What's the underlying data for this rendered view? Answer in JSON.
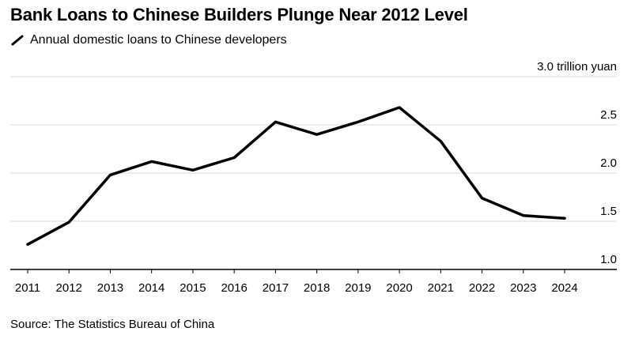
{
  "title": "Bank Loans to Chinese Builders Plunge Near 2012 Level",
  "legend_label": "Annual domestic loans to Chinese developers",
  "source": "Source: The Statistics Bureau of China",
  "colors": {
    "line": "#000000",
    "grid": "#d9d9d9",
    "axis": "#000000"
  },
  "chart_data": {
    "type": "line",
    "x": [
      2011,
      2012,
      2013,
      2014,
      2015,
      2016,
      2017,
      2018,
      2019,
      2020,
      2021,
      2022,
      2023,
      2024
    ],
    "series": [
      {
        "name": "Annual domestic loans to Chinese developers",
        "values": [
          1.26,
          1.49,
          1.98,
          2.12,
          2.03,
          2.16,
          2.53,
          2.4,
          2.53,
          2.68,
          2.33,
          1.74,
          1.56,
          1.53
        ]
      }
    ],
    "yticks": [
      "1.0",
      "1.5",
      "2.0",
      "2.5",
      "3.0 trillion yuan"
    ],
    "ylim": [
      1.0,
      3.0
    ],
    "grid": true
  }
}
